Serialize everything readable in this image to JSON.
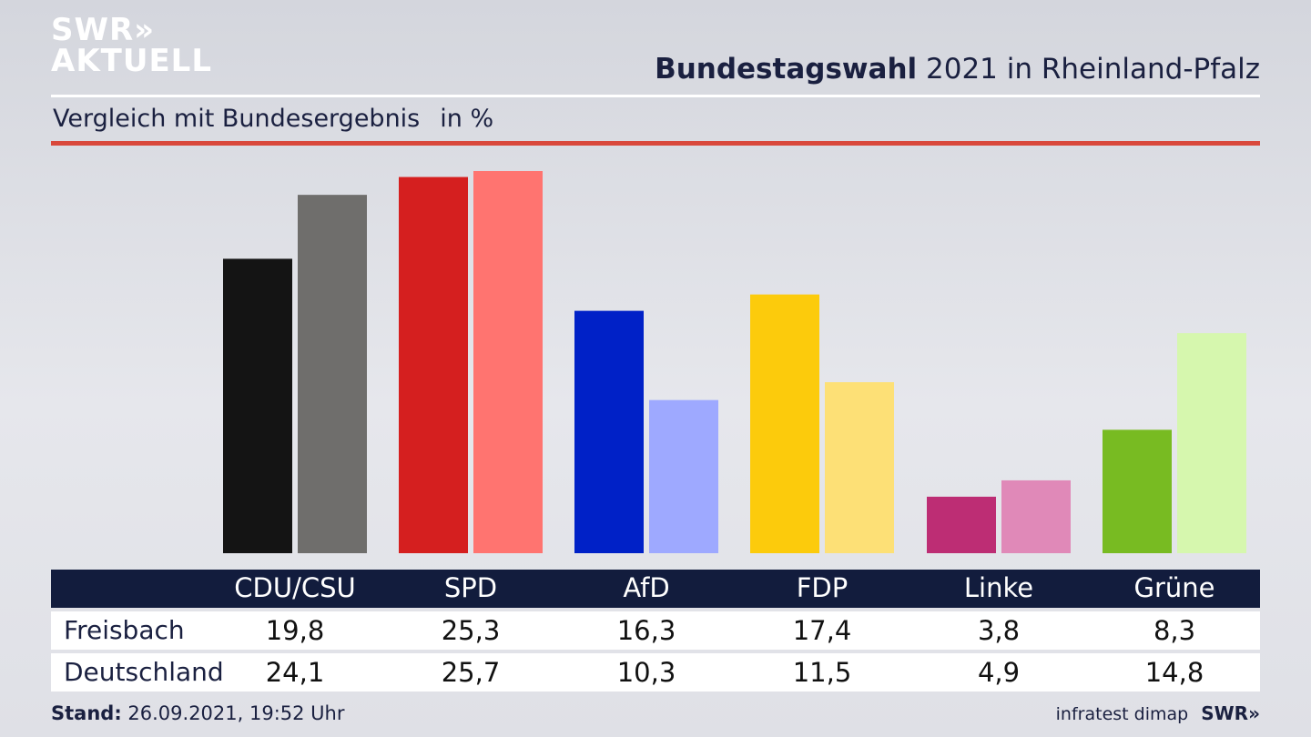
{
  "brand": {
    "line1": "SWR»",
    "line2": "AKTUELL",
    "color": "#ffffff"
  },
  "header": {
    "title_bold": "Bundestagswahl",
    "title_rest": " 2021 in Rheinland-Pfalz",
    "subtitle": "Vergleich mit Bundesergebnis",
    "unit": "in %",
    "accent_rule_color": "#d9483b"
  },
  "chart_data": {
    "type": "bar",
    "categories": [
      "CDU/CSU",
      "SPD",
      "AfD",
      "FDP",
      "Linke",
      "Grüne"
    ],
    "series": [
      {
        "name": "Freisbach",
        "values": [
          19.8,
          25.3,
          16.3,
          17.4,
          3.8,
          8.3
        ],
        "colors": [
          "#141414",
          "#d51f1f",
          "#0021c7",
          "#fccb0c",
          "#bd2d74",
          "#78bb22"
        ]
      },
      {
        "name": "Deutschland",
        "values": [
          24.1,
          25.7,
          10.3,
          11.5,
          4.9,
          14.8
        ],
        "colors": [
          "#6f6e6c",
          "#ff7470",
          "#9ea9ff",
          "#fde076",
          "#e089b8",
          "#d6f7ae"
        ]
      }
    ],
    "ylim": [
      0,
      25.7
    ],
    "grid": false,
    "legend": "table-below"
  },
  "table": {
    "header": [
      "CDU/CSU",
      "SPD",
      "AfD",
      "FDP",
      "Linke",
      "Grüne"
    ],
    "rows": [
      {
        "label": "Freisbach",
        "cells": [
          "19,8",
          "25,3",
          "16,3",
          "17,4",
          "3,8",
          "8,3"
        ]
      },
      {
        "label": "Deutschland",
        "cells": [
          "24,1",
          "25,7",
          "10,3",
          "11,5",
          "4,9",
          "14,8"
        ]
      }
    ]
  },
  "footer": {
    "stand_label": "Stand:",
    "stand_value": " 26.09.2021, 19:52 Uhr",
    "source": "infratest dimap",
    "brand": "SWR»"
  }
}
